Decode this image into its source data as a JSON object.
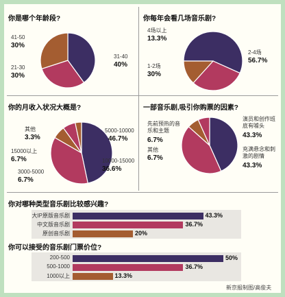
{
  "colors": {
    "navy": "#3c2e63",
    "crimson": "#b23a5f",
    "brown": "#a45d31",
    "white": "#ffffff"
  },
  "chart_data": [
    {
      "type": "pie",
      "title": "你是哪个年龄段?",
      "slices": [
        {
          "label": "31-40",
          "value": 40,
          "display": "40%"
        },
        {
          "label": "21-30",
          "value": 30,
          "display": "30%"
        },
        {
          "label": "41-50",
          "value": 30,
          "display": "30%"
        }
      ]
    },
    {
      "type": "pie",
      "title": "你每年会看几场音乐剧?",
      "slices": [
        {
          "label": "2-4场",
          "value": 56.7,
          "display": "56.7%"
        },
        {
          "label": "1-2场",
          "value": 30,
          "display": "30%"
        },
        {
          "label": "4场以上",
          "value": 13.3,
          "display": "13.3%"
        }
      ]
    },
    {
      "type": "pie",
      "title": "你的月收入状况大概是?",
      "slices": [
        {
          "label": "5000-10000",
          "value": 46.7,
          "display": "46.7%"
        },
        {
          "label": "10000-15000",
          "value": 36.6,
          "display": "36.6%"
        },
        {
          "label": "3000-5000",
          "value": 6.7,
          "display": "6.7%"
        },
        {
          "label": "15000以上",
          "value": 6.7,
          "display": "6.7%"
        },
        {
          "label": "其他",
          "value": 3.3,
          "display": "3.3%"
        }
      ]
    },
    {
      "type": "pie",
      "title": "一部音乐剧,吸引你购票的因素?",
      "slices": [
        {
          "label": "演员和创作班底有噱头",
          "value": 43.3,
          "display": "43.3%"
        },
        {
          "label": "充满悬念和刺激的剧情",
          "value": 43.3,
          "display": "43.3%"
        },
        {
          "label": "其他",
          "value": 6.7,
          "display": "6.7%"
        },
        {
          "label": "先前预热的音乐和主题",
          "value": 6.7,
          "display": "6.7%"
        }
      ]
    },
    {
      "type": "bar",
      "title": "你对哪种类型音乐剧比较感兴趣?",
      "categories": [
        "大IP原版音乐剧",
        "中文版音乐剧",
        "原创音乐剧"
      ],
      "values": [
        43.3,
        36.7,
        20
      ],
      "displays": [
        "43.3%",
        "36.7%",
        "20%"
      ]
    },
    {
      "type": "bar",
      "title": "你可以接受的音乐剧门票价位?",
      "categories": [
        "200-500",
        "500-1000",
        "1000以上"
      ],
      "values": [
        50,
        36.7,
        13.3
      ],
      "displays": [
        "50%",
        "36.7%",
        "13.3%"
      ]
    }
  ],
  "credit": "新京报制图/高俊夫"
}
